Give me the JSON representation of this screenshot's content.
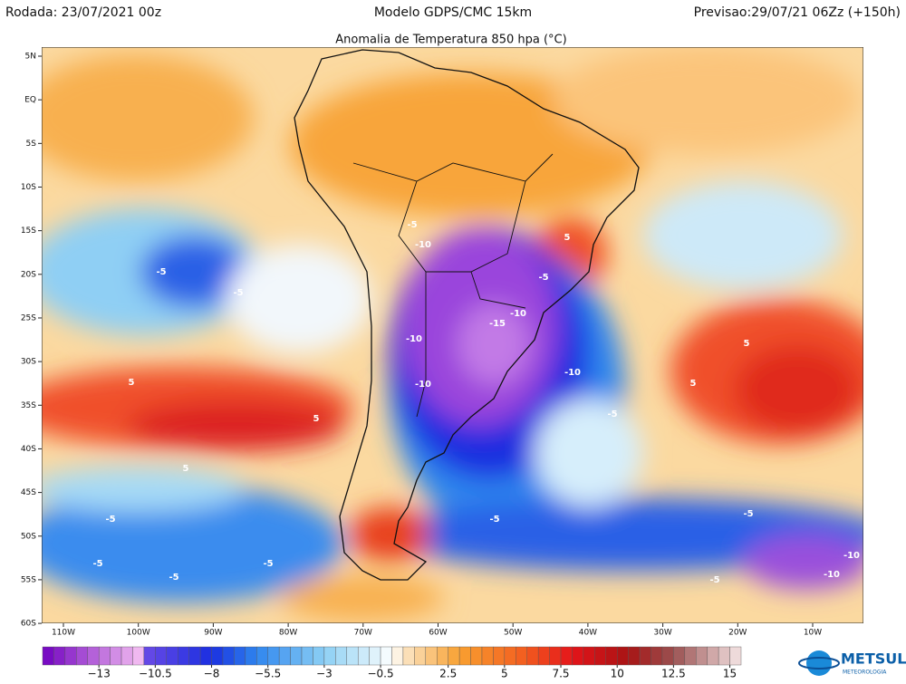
{
  "header": {
    "left": "Rodada: 23/07/2021 00z",
    "center": "Modelo GDPS/CMC 15km",
    "right": "Previsao:29/07/21 06Zz (+150h)"
  },
  "map": {
    "title": "Anomalia de Temperatura 850 hpa (°C)",
    "lat_labels": [
      "5N",
      "EQ",
      "5S",
      "10S",
      "15S",
      "20S",
      "25S",
      "30S",
      "35S",
      "40S",
      "45S",
      "50S",
      "55S",
      "60S"
    ],
    "lon_labels": [
      "110W",
      "100W",
      "90W",
      "80W",
      "70W",
      "60W",
      "50W",
      "40W",
      "30W",
      "20W",
      "10W"
    ],
    "contour_labels": [
      "-5",
      "-10",
      "-5",
      "-5",
      "-10",
      "-15",
      "-10",
      "-10",
      "-10",
      "5",
      "-5",
      "5",
      "5",
      "5",
      "5",
      "5",
      "-5",
      "-5",
      "-5",
      "-5",
      "-5",
      "-5",
      "-10",
      "-10",
      "-5",
      "-5"
    ]
  },
  "colorbar": {
    "lim": [
      -15.5,
      15.5
    ],
    "step": 0.5,
    "stops": [
      {
        "value": -15.5,
        "color": "#7000c0"
      },
      {
        "value": -11.25,
        "color": "#f0b8f0"
      },
      {
        "value": -11,
        "color": "#6a4ae6"
      },
      {
        "value": -8,
        "color": "#1a2fe0"
      },
      {
        "value": -6,
        "color": "#2f86ee"
      },
      {
        "value": -3,
        "color": "#8ccff4"
      },
      {
        "value": -0.5,
        "color": "#e8f6fc"
      },
      {
        "value": 0,
        "color": "#ffffff"
      },
      {
        "value": 0.5,
        "color": "#fbe6c6"
      },
      {
        "value": 3,
        "color": "#f8a030"
      },
      {
        "value": 6,
        "color": "#f25a1e"
      },
      {
        "value": 8,
        "color": "#e4141a"
      },
      {
        "value": 10.5,
        "color": "#a81414"
      },
      {
        "value": 12.5,
        "color": "#9a5050"
      },
      {
        "value": 15.5,
        "color": "#f6e6e6"
      }
    ],
    "ticks": [
      {
        "value": -13,
        "label": "−13"
      },
      {
        "value": -10.5,
        "label": "−10.5"
      },
      {
        "value": -8,
        "label": "−8"
      },
      {
        "value": -5.5,
        "label": "−5.5"
      },
      {
        "value": -3,
        "label": "−3"
      },
      {
        "value": -0.5,
        "label": "−0.5"
      },
      2.5,
      5,
      7.5,
      10,
      12.5,
      15
    ]
  },
  "logo": {
    "name": "METSUL",
    "subtitle": "METEOROLOGIA"
  }
}
